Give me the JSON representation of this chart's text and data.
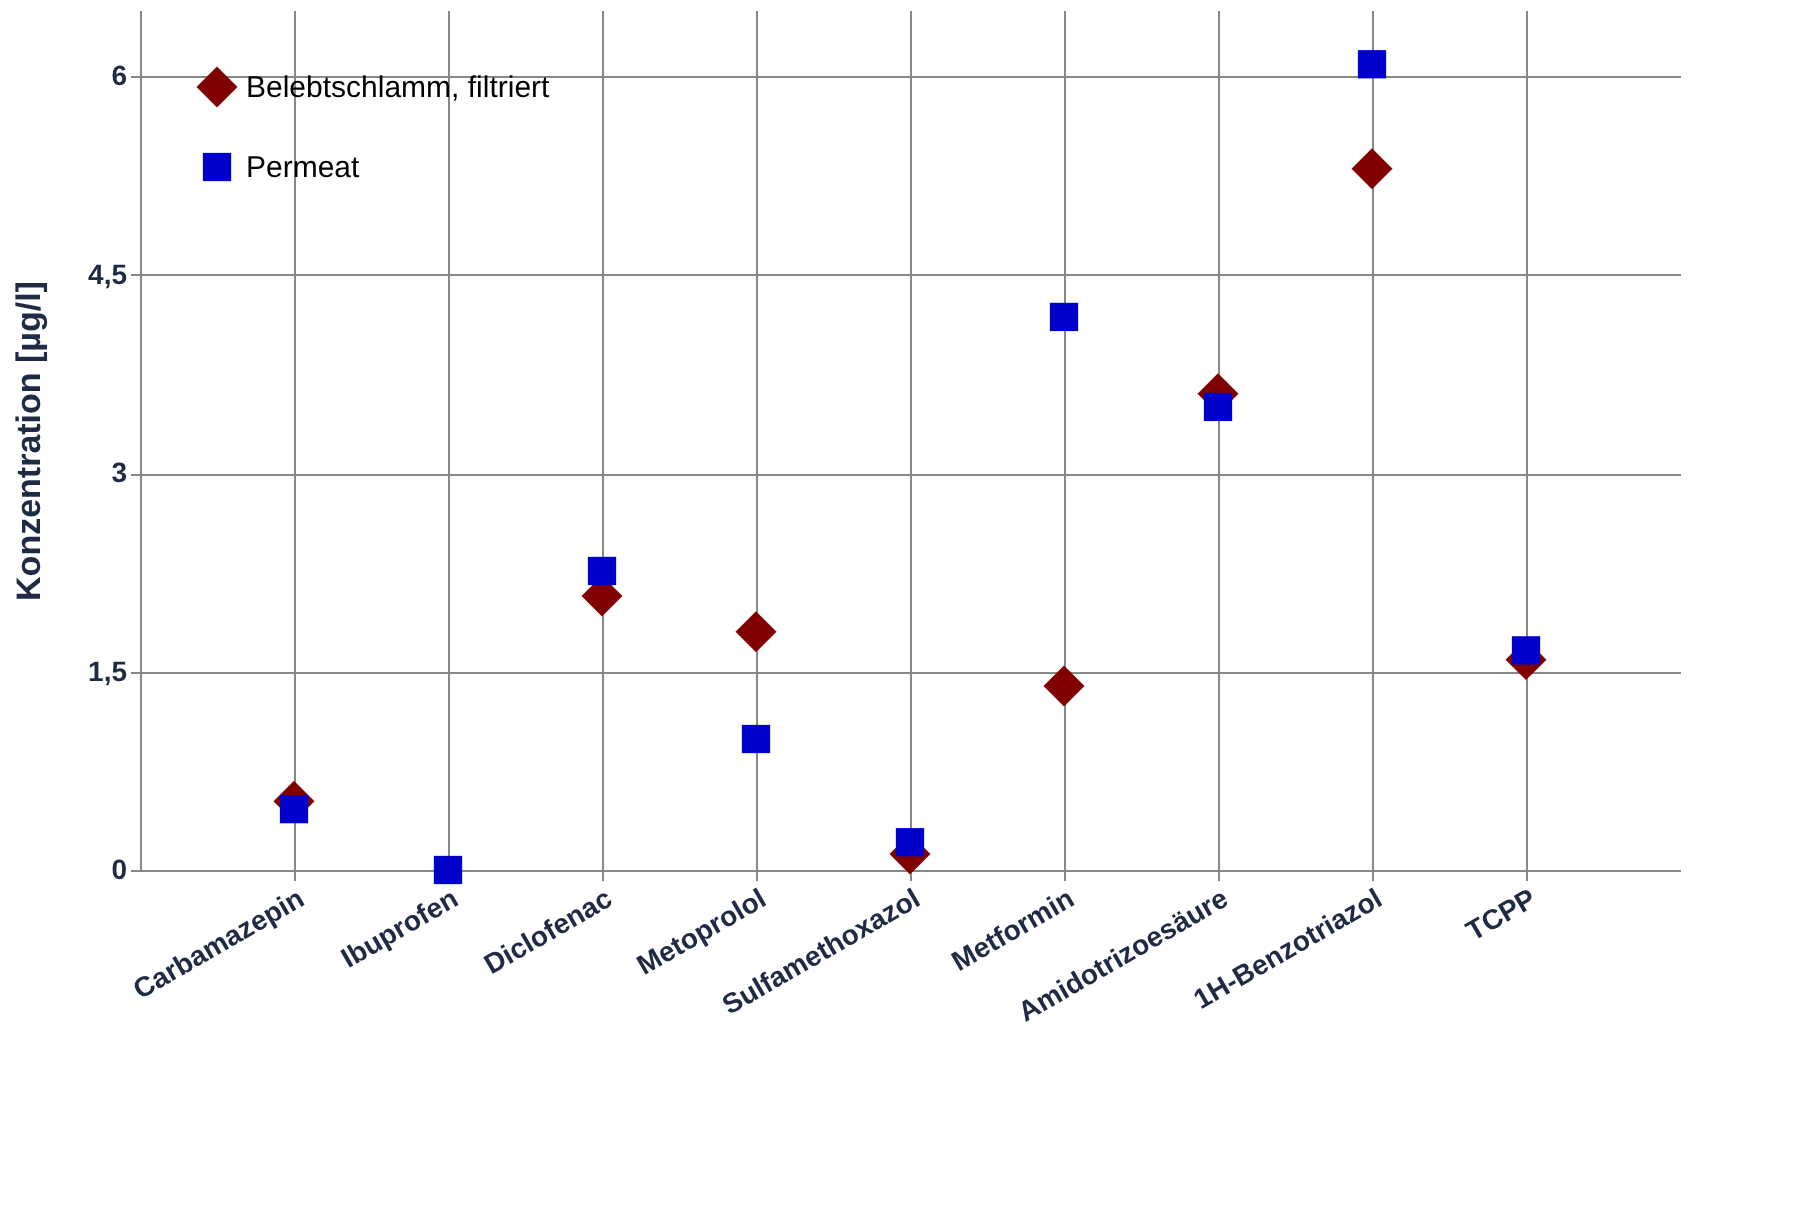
{
  "chart_data": {
    "type": "scatter",
    "ylabel": "Konzentration [µg/l]",
    "categories": [
      "Carbamazepin",
      "Ibuprofen",
      "Diclofenac",
      "Metoprolol",
      "Sulfamethoxazol",
      "Metformin",
      "Amidotrizoesäure",
      "1H-Benzotriazol",
      "TCPP"
    ],
    "series": [
      {
        "name": "Belebtschlamm, filtriert",
        "color": "#800000",
        "marker": "diamond",
        "values": [
          0.52,
          null,
          2.07,
          1.8,
          0.12,
          1.39,
          3.6,
          5.3,
          1.59
        ]
      },
      {
        "name": "Permeat",
        "color": "#0000cc",
        "marker": "square",
        "values": [
          0.46,
          0.0,
          2.26,
          0.99,
          0.21,
          4.18,
          3.5,
          6.09,
          1.66
        ]
      }
    ],
    "ylim": [
      0,
      6.5
    ],
    "yticks": [
      0,
      {
        "value": 1.5,
        "label": "1,5"
      },
      3,
      {
        "value": 4.5,
        "label": "4,5"
      },
      6
    ],
    "grid": true,
    "legend": "top left"
  }
}
